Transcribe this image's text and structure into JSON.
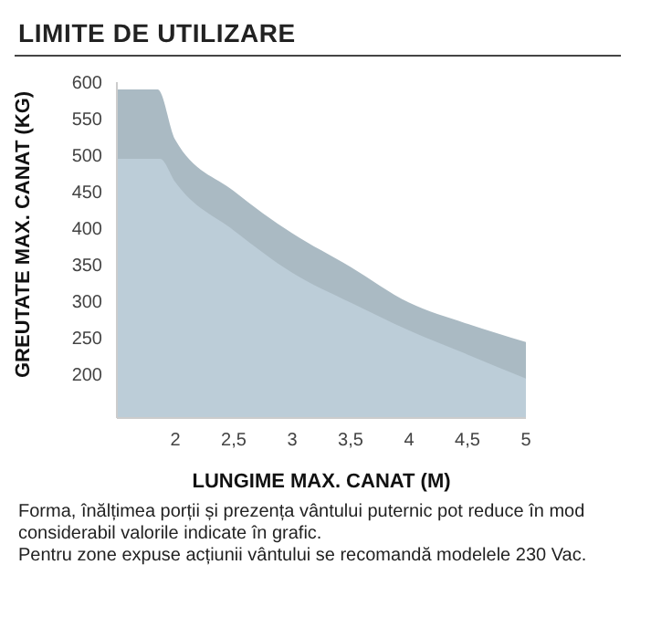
{
  "chart_data": {
    "type": "area",
    "title": "LIMITE DE UTILIZARE",
    "xlabel": "LUNGIME MAX. CANAT (M)",
    "ylabel": "GREUTATE MAX. CANAT (KG)",
    "series": [
      {
        "color": "#aabac3",
        "x": [
          1.5,
          1.85,
          2,
          2.5,
          3,
          3.5,
          4,
          4.5,
          5
        ],
        "values": [
          590,
          590,
          521,
          451,
          393,
          347,
          298,
          269,
          244
        ]
      },
      {
        "color": "#bccdd8",
        "x": [
          1.5,
          1.87,
          2,
          2.5,
          3,
          3.5,
          4,
          4.5,
          5
        ],
        "values": [
          495,
          495,
          463,
          397,
          339,
          298,
          260,
          227,
          194
        ]
      }
    ],
    "xlim": [
      1.5,
      5
    ],
    "xticks": [
      2,
      {
        "value": 2.5,
        "label": "2,5"
      },
      3,
      {
        "value": 3.5,
        "label": "3,5"
      },
      4,
      {
        "value": 4.5,
        "label": "4,5"
      },
      5
    ],
    "ylim": [
      140,
      600
    ],
    "yticks": [
      200,
      250,
      300,
      350,
      400,
      450,
      500,
      550,
      600
    ],
    "grid": false,
    "legend": false,
    "annotations": [
      "Forma, înălțimea porții și prezența vântului puternic pot reduce în mod considerabil valorile indicate în grafic.",
      "Pentru zone expuse acțiunii vântului se recomandă modelele 230 Vac."
    ]
  }
}
